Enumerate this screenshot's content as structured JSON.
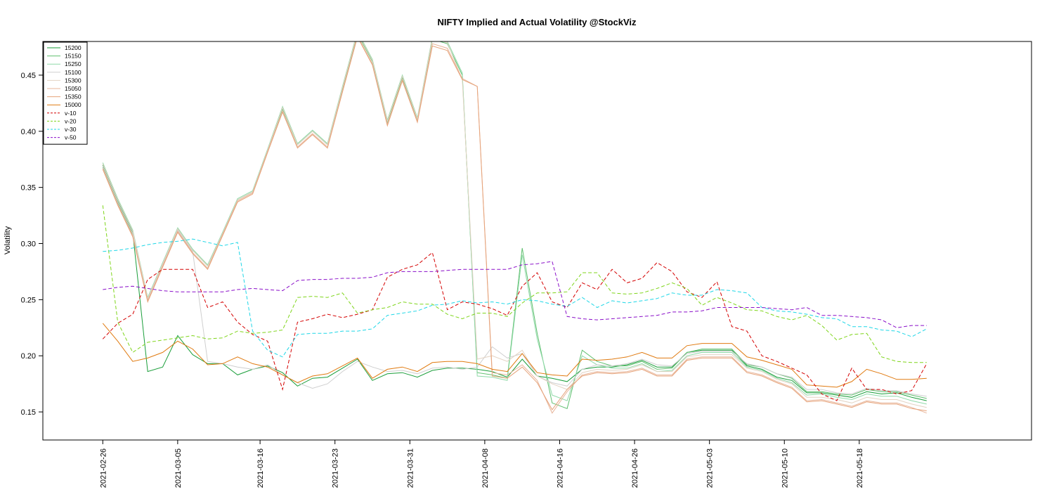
{
  "chart_data": {
    "type": "line",
    "title": "NIFTY Implied and Actual Volatility @StockViz",
    "ylabel": "Volatility",
    "xlabel": "",
    "ylim": [
      0.125,
      0.48
    ],
    "yticks": [
      0.15,
      0.2,
      0.25,
      0.3,
      0.35,
      0.4,
      0.45
    ],
    "ytick_labels": [
      "0.15",
      "0.20",
      "0.25",
      "0.30",
      "0.35",
      "0.40",
      "0.45"
    ],
    "xlim": [
      -4,
      62
    ],
    "xticks": [
      {
        "i": 0,
        "label": "2021-02-26"
      },
      {
        "i": 5,
        "label": "2021-03-05"
      },
      {
        "i": 10.5,
        "label": "2021-03-16"
      },
      {
        "i": 15.5,
        "label": "2021-03-23"
      },
      {
        "i": 20.5,
        "label": "2021-03-31"
      },
      {
        "i": 25.5,
        "label": "2021-04-08"
      },
      {
        "i": 30.5,
        "label": "2021-04-16"
      },
      {
        "i": 35.5,
        "label": "2021-04-26"
      },
      {
        "i": 40.5,
        "label": "2021-05-03"
      },
      {
        "i": 45.5,
        "label": "2021-05-10"
      },
      {
        "i": 50.5,
        "label": "2021-05-18"
      }
    ],
    "legend_position": "top-left",
    "series": [
      {
        "name": "15200",
        "color": "#1a9e3a",
        "dash": "",
        "values": [
          0.37,
          0.338,
          0.31,
          0.186,
          0.19,
          0.218,
          0.201,
          0.193,
          0.193,
          0.183,
          0.188,
          0.191,
          0.185,
          0.173,
          0.18,
          0.181,
          0.189,
          0.197,
          0.178,
          0.184,
          0.185,
          0.181,
          0.187,
          0.189,
          0.189,
          0.188,
          0.186,
          0.181,
          0.197,
          0.182,
          0.18,
          0.177,
          0.188,
          0.19,
          0.19,
          0.192,
          0.196,
          0.19,
          0.19,
          0.203,
          0.205,
          0.205,
          0.205,
          0.191,
          0.188,
          0.181,
          0.178,
          0.167,
          0.167,
          0.165,
          0.163,
          0.168,
          0.166,
          0.167,
          0.163,
          0.16
        ]
      },
      {
        "name": "15150",
        "color": "#5fbf6e",
        "dash": "",
        "values": [
          0.368,
          0.336,
          0.308,
          0.25,
          0.282,
          0.313,
          0.294,
          0.28,
          0.309,
          0.339,
          0.346,
          0.383,
          0.42,
          0.388,
          0.4,
          0.388,
          0.438,
          0.487,
          0.462,
          0.408,
          0.448,
          0.41,
          0.482,
          0.478,
          0.45,
          0.185,
          0.183,
          0.18,
          0.296,
          0.22,
          0.158,
          0.153,
          0.205,
          0.195,
          0.191,
          0.191,
          0.195,
          0.188,
          0.189,
          0.203,
          0.206,
          0.206,
          0.206,
          0.192,
          0.19,
          0.184,
          0.18,
          0.168,
          0.168,
          0.166,
          0.165,
          0.17,
          0.168,
          0.168,
          0.165,
          0.162
        ]
      },
      {
        "name": "15250",
        "color": "#8fd9a8",
        "dash": "",
        "values": [
          0.372,
          0.34,
          0.312,
          0.252,
          0.283,
          0.314,
          0.295,
          0.281,
          0.31,
          0.34,
          0.347,
          0.384,
          0.422,
          0.389,
          0.401,
          0.389,
          0.44,
          0.489,
          0.464,
          0.41,
          0.45,
          0.412,
          0.484,
          0.48,
          0.452,
          0.182,
          0.181,
          0.178,
          0.29,
          0.215,
          0.165,
          0.16,
          0.2,
          0.192,
          0.189,
          0.189,
          0.193,
          0.186,
          0.187,
          0.2,
          0.203,
          0.203,
          0.203,
          0.19,
          0.187,
          0.18,
          0.176,
          0.165,
          0.166,
          0.163,
          0.161,
          0.166,
          0.164,
          0.164,
          0.16,
          0.157
        ]
      },
      {
        "name": "15100",
        "color": "#cfcfcf",
        "dash": "",
        "values": [
          0.369,
          0.337,
          0.309,
          0.25,
          0.281,
          0.312,
          0.293,
          0.195,
          0.193,
          0.19,
          0.188,
          0.192,
          0.183,
          0.176,
          0.171,
          0.175,
          0.186,
          0.195,
          0.19,
          0.186,
          0.187,
          0.184,
          0.189,
          0.19,
          0.188,
          0.19,
          0.208,
          0.198,
          0.202,
          0.182,
          0.176,
          0.173,
          0.188,
          0.192,
          0.191,
          0.193,
          0.197,
          0.192,
          0.191,
          0.202,
          0.204,
          0.204,
          0.204,
          0.193,
          0.19,
          0.184,
          0.181,
          0.17,
          0.17,
          0.167,
          0.166,
          0.171,
          0.169,
          0.169,
          0.166,
          0.164
        ]
      },
      {
        "name": "15300",
        "color": "#e3d3c3",
        "dash": "",
        "values": [
          0.371,
          0.339,
          0.311,
          0.251,
          0.282,
          0.313,
          0.294,
          0.28,
          0.309,
          0.339,
          0.346,
          0.383,
          0.421,
          0.388,
          0.4,
          0.388,
          0.439,
          0.488,
          0.463,
          0.409,
          0.449,
          0.411,
          0.483,
          0.479,
          0.446,
          0.197,
          0.2,
          0.195,
          0.205,
          0.182,
          0.175,
          0.17,
          0.185,
          0.188,
          0.187,
          0.188,
          0.192,
          0.186,
          0.186,
          0.199,
          0.201,
          0.201,
          0.201,
          0.189,
          0.186,
          0.179,
          0.175,
          0.163,
          0.163,
          0.161,
          0.158,
          0.163,
          0.161,
          0.161,
          0.157,
          0.154
        ]
      },
      {
        "name": "15050",
        "color": "#e8b59a",
        "dash": "",
        "values": [
          0.367,
          0.335,
          0.307,
          0.249,
          0.28,
          0.311,
          0.292,
          0.278,
          0.308,
          0.338,
          0.345,
          0.382,
          0.418,
          0.386,
          0.398,
          0.386,
          0.436,
          0.485,
          0.46,
          0.406,
          0.446,
          0.409,
          0.478,
          0.474,
          0.447,
          0.44,
          0.185,
          0.183,
          0.192,
          0.178,
          0.149,
          0.168,
          0.183,
          0.186,
          0.185,
          0.186,
          0.189,
          0.183,
          0.183,
          0.197,
          0.199,
          0.199,
          0.199,
          0.186,
          0.183,
          0.177,
          0.172,
          0.16,
          0.161,
          0.158,
          0.155,
          0.16,
          0.158,
          0.158,
          0.154,
          0.149
        ]
      },
      {
        "name": "15350",
        "color": "#e6a37a",
        "dash": "",
        "values": [
          0.366,
          0.334,
          0.306,
          0.248,
          0.279,
          0.31,
          0.291,
          0.277,
          0.307,
          0.337,
          0.344,
          0.381,
          0.417,
          0.385,
          0.397,
          0.385,
          0.435,
          0.484,
          0.459,
          0.405,
          0.445,
          0.408,
          0.476,
          0.472,
          0.446,
          0.44,
          0.182,
          0.18,
          0.19,
          0.176,
          0.152,
          0.17,
          0.182,
          0.185,
          0.184,
          0.185,
          0.188,
          0.182,
          0.182,
          0.196,
          0.198,
          0.198,
          0.198,
          0.185,
          0.182,
          0.176,
          0.171,
          0.159,
          0.16,
          0.157,
          0.154,
          0.159,
          0.157,
          0.157,
          0.153,
          0.151
        ]
      },
      {
        "name": "15000",
        "color": "#e07a10",
        "dash": "",
        "values": [
          0.229,
          0.213,
          0.195,
          0.198,
          0.203,
          0.213,
          0.206,
          0.192,
          0.193,
          0.199,
          0.193,
          0.19,
          0.183,
          0.176,
          0.182,
          0.184,
          0.191,
          0.198,
          0.18,
          0.188,
          0.19,
          0.186,
          0.194,
          0.195,
          0.195,
          0.193,
          0.188,
          0.186,
          0.202,
          0.185,
          0.183,
          0.182,
          0.197,
          0.196,
          0.197,
          0.199,
          0.203,
          0.198,
          0.198,
          0.209,
          0.211,
          0.211,
          0.211,
          0.199,
          0.196,
          0.192,
          0.188,
          0.174,
          0.173,
          0.172,
          0.177,
          0.188,
          0.184,
          0.179,
          0.179,
          0.18
        ]
      },
      {
        "name": "v-10",
        "color": "#d40000",
        "dash": "5,3",
        "values": [
          0.215,
          0.229,
          0.237,
          0.268,
          0.277,
          0.277,
          0.277,
          0.243,
          0.248,
          0.23,
          0.219,
          0.213,
          0.17,
          0.23,
          0.233,
          0.237,
          0.234,
          0.237,
          0.241,
          0.27,
          0.277,
          0.281,
          0.292,
          0.241,
          0.248,
          0.246,
          0.242,
          0.236,
          0.262,
          0.274,
          0.248,
          0.243,
          0.265,
          0.259,
          0.277,
          0.265,
          0.269,
          0.283,
          0.275,
          0.257,
          0.252,
          0.266,
          0.226,
          0.222,
          0.2,
          0.195,
          0.189,
          0.183,
          0.166,
          0.16,
          0.189,
          0.17,
          0.17,
          0.166,
          0.169,
          0.193
        ]
      },
      {
        "name": "v-20",
        "color": "#7fd51b",
        "dash": "5,3",
        "values": [
          0.334,
          0.23,
          0.203,
          0.212,
          0.214,
          0.216,
          0.218,
          0.215,
          0.216,
          0.222,
          0.22,
          0.221,
          0.223,
          0.252,
          0.253,
          0.252,
          0.256,
          0.238,
          0.241,
          0.243,
          0.248,
          0.246,
          0.246,
          0.237,
          0.233,
          0.238,
          0.238,
          0.235,
          0.247,
          0.256,
          0.256,
          0.257,
          0.274,
          0.274,
          0.256,
          0.255,
          0.256,
          0.26,
          0.265,
          0.26,
          0.245,
          0.252,
          0.247,
          0.241,
          0.24,
          0.235,
          0.232,
          0.236,
          0.227,
          0.214,
          0.219,
          0.22,
          0.199,
          0.195,
          0.194,
          0.194
        ]
      },
      {
        "name": "v-30",
        "color": "#1ed7e7",
        "dash": "5,3",
        "values": [
          0.293,
          0.294,
          0.296,
          0.299,
          0.301,
          0.302,
          0.304,
          0.301,
          0.298,
          0.301,
          0.222,
          0.205,
          0.199,
          0.219,
          0.22,
          0.22,
          0.222,
          0.222,
          0.224,
          0.236,
          0.238,
          0.24,
          0.245,
          0.246,
          0.249,
          0.247,
          0.248,
          0.246,
          0.25,
          0.249,
          0.246,
          0.244,
          0.252,
          0.243,
          0.249,
          0.247,
          0.249,
          0.251,
          0.256,
          0.254,
          0.254,
          0.259,
          0.258,
          0.256,
          0.243,
          0.24,
          0.239,
          0.237,
          0.234,
          0.233,
          0.226,
          0.226,
          0.223,
          0.222,
          0.217,
          0.224
        ]
      },
      {
        "name": "v-50",
        "color": "#8a0fc9",
        "dash": "5,3",
        "values": [
          0.259,
          0.261,
          0.262,
          0.26,
          0.258,
          0.257,
          0.257,
          0.257,
          0.257,
          0.259,
          0.26,
          0.259,
          0.258,
          0.267,
          0.268,
          0.268,
          0.269,
          0.269,
          0.27,
          0.274,
          0.275,
          0.275,
          0.275,
          0.276,
          0.277,
          0.277,
          0.277,
          0.277,
          0.281,
          0.282,
          0.284,
          0.235,
          0.233,
          0.232,
          0.233,
          0.234,
          0.235,
          0.236,
          0.239,
          0.239,
          0.24,
          0.243,
          0.243,
          0.243,
          0.243,
          0.242,
          0.241,
          0.243,
          0.236,
          0.236,
          0.235,
          0.234,
          0.232,
          0.225,
          0.227,
          0.227
        ]
      }
    ]
  }
}
